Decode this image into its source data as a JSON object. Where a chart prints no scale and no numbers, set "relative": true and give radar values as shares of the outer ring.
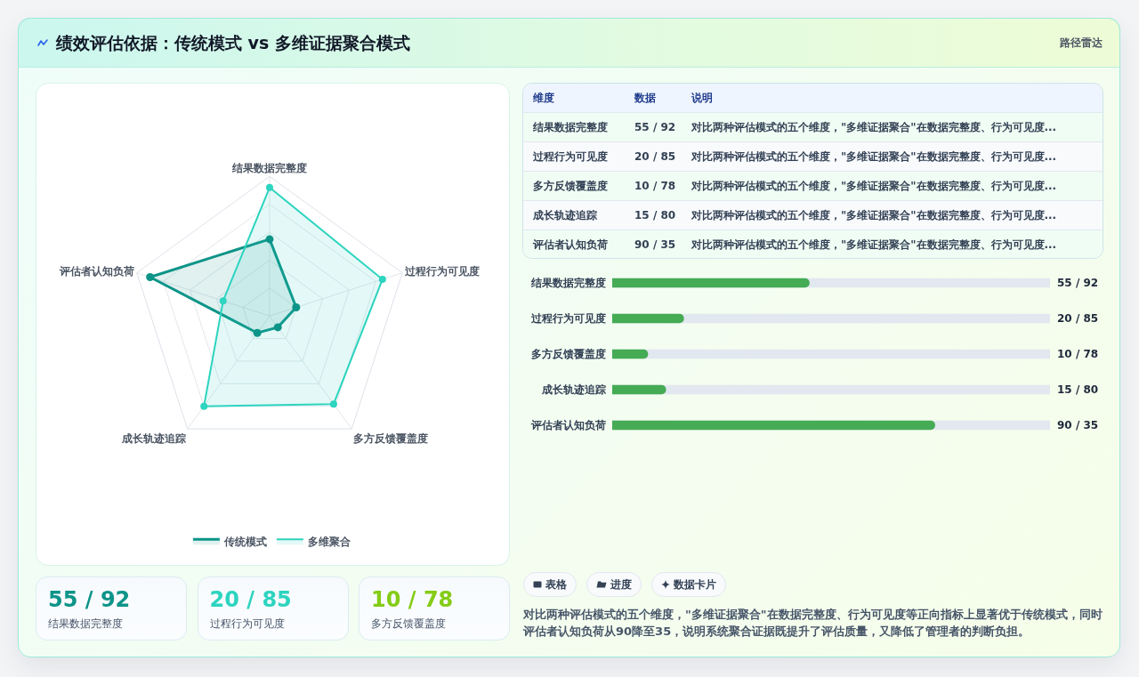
{
  "chart_data": [
    {
      "type": "other",
      "title": "绩效评估依据：传统模式 vs 多维证据聚合模式",
      "subtitle": "路径雷达"
    },
    {
      "type": "radar",
      "relative": true,
      "categories": [
        "结果数据完整度",
        "过程行为可见度",
        "多方反馈覆盖度",
        "成长轨迹追踪",
        "评估者认知负荷"
      ],
      "series": [
        {
          "name": "传统模式",
          "color": "#0d9488",
          "values": [
            0.55,
            0.2,
            0.1,
            0.15,
            0.9
          ]
        },
        {
          "name": "多维聚合",
          "color": "#2dd4bf",
          "values": [
            0.92,
            0.85,
            0.78,
            0.8,
            0.35
          ]
        }
      ],
      "grid": true,
      "legend": "bottom",
      "marker": "circle"
    },
    {
      "type": "other",
      "annotations": [
        "维度",
        "数据",
        "说明",
        "结果数据完整度",
        "55 / 92",
        "对比两种评估模式的五个维度，\"多维证据聚合\"在数据完整度、行为可见度...",
        "过程行为可见度",
        "20 / 85",
        "对比两种评估模式的五个维度，\"多维证据聚合\"在数据完整度、行为可见度...",
        "多方反馈覆盖度",
        "10 / 78",
        "对比两种评估模式的五个维度，\"多维证据聚合\"在数据完整度、行为可见度...",
        "成长轨迹追踪",
        "15 / 80",
        "对比两种评估模式的五个维度，\"多维证据聚合\"在数据完整度、行为可见度...",
        "评估者认知负荷",
        "90 / 35",
        "对比两种评估模式的五个维度，\"多维证据聚合\"在数据完整度、行为可见度..."
      ]
    },
    {
      "type": "bar",
      "orientation": "horizontal",
      "categories": [
        "结果数据完整度",
        "过程行为可见度",
        "多方反馈覆盖度",
        "成长轨迹追踪",
        "评估者认知负荷"
      ],
      "values": [
        55,
        20,
        10,
        15,
        90
      ],
      "value_labels": [
        "55 / 92",
        "20 / 85",
        "10 / 78",
        "15 / 80",
        "90 / 35"
      ],
      "color": "#45ab55",
      "xlim": [
        0,
        122
      ],
      "tick_labels": "y"
    },
    {
      "type": "other",
      "annotations": [
        "55 / 92",
        "结果数据完整度",
        "20 / 85",
        "过程行为可见度",
        "10 / 78",
        "多方反馈覆盖度"
      ]
    },
    {
      "type": "other",
      "annotations": [
        "表格",
        "进度",
        "数据卡片",
        "对比两种评估模式的五个维度，\"多维证据聚合\"在数据完整度、行为可见度等正向指标上显著优于传统模式，同时评估者认知负荷从90降至35，说明系统聚合证据既提升了评估质量，又降低了管理者的判断负担。"
      ]
    }
  ]
}
